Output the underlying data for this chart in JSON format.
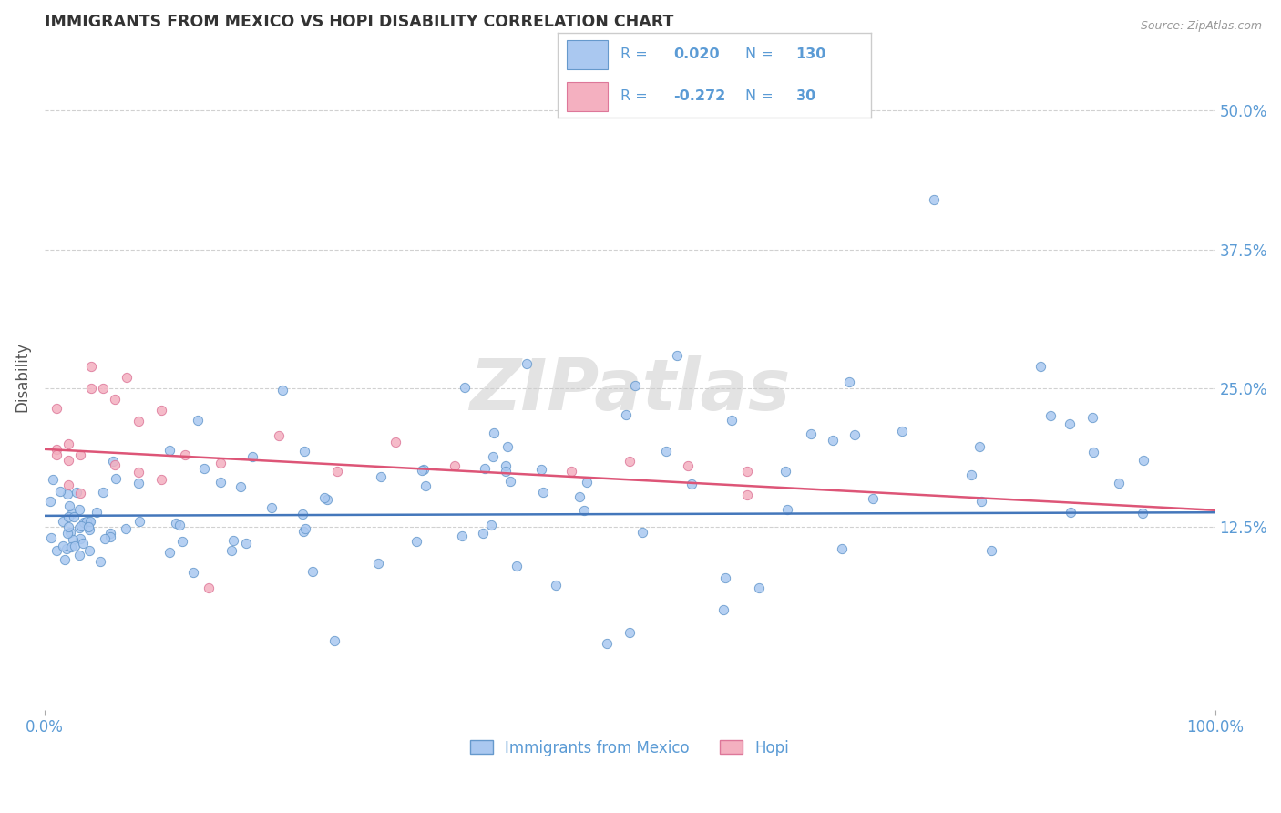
{
  "title": "IMMIGRANTS FROM MEXICO VS HOPI DISABILITY CORRELATION CHART",
  "source_text": "Source: ZipAtlas.com",
  "ylabel": "Disability",
  "xlim": [
    0,
    1.0
  ],
  "ylim": [
    -0.04,
    0.56
  ],
  "ytick_vals": [
    0.0,
    0.125,
    0.25,
    0.375,
    0.5
  ],
  "ytick_labels": [
    "",
    "12.5%",
    "25.0%",
    "37.5%",
    "50.0%"
  ],
  "blue_scatter_color": "#aac8f0",
  "blue_scatter_edge": "#6699cc",
  "pink_scatter_color": "#f4b0c0",
  "pink_scatter_edge": "#dd7799",
  "blue_line_color": "#4477bb",
  "pink_line_color": "#dd5577",
  "blue_r": 0.02,
  "blue_n": 130,
  "pink_r": -0.272,
  "pink_n": 30,
  "legend_text_color": "#5b9bd5",
  "legend_r_color": "#5b9bd5",
  "legend_n_color": "#5b9bd5",
  "title_color": "#333333",
  "axis_tick_color": "#5b9bd5",
  "ylabel_color": "#555555",
  "watermark": "ZIPatlas",
  "background_color": "#ffffff",
  "grid_color": "#cccccc",
  "blue_trend_intercept": 0.135,
  "blue_trend_slope": 0.003,
  "pink_trend_intercept": 0.195,
  "pink_trend_slope": -0.055
}
